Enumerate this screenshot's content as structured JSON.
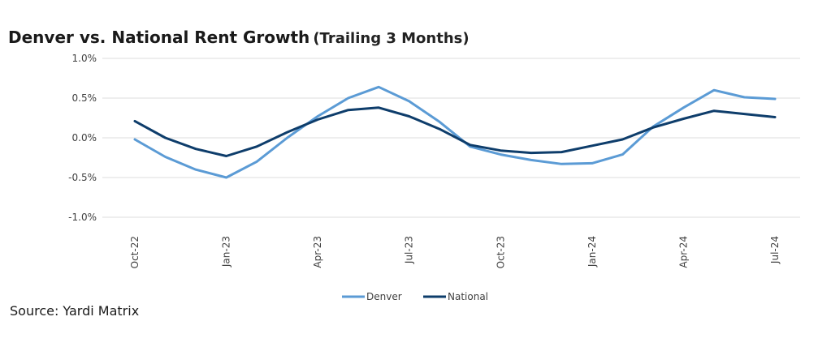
{
  "chart_data": {
    "type": "line",
    "title": "Denver vs. National Rent Growth",
    "subtitle": "(Trailing 3 Months)",
    "xlabel": "",
    "ylabel": "",
    "x": [
      "Oct-22",
      "Nov-22",
      "Dec-22",
      "Jan-23",
      "Feb-23",
      "Mar-23",
      "Apr-23",
      "May-23",
      "Jun-23",
      "Jul-23",
      "Aug-23",
      "Sep-23",
      "Oct-23",
      "Nov-23",
      "Dec-23",
      "Jan-24",
      "Feb-24",
      "Mar-24",
      "Apr-24",
      "May-24",
      "Jun-24",
      "Jul-24"
    ],
    "x_tick_labels": [
      "Oct-22",
      "Jan-23",
      "Apr-23",
      "Jul-23",
      "Oct-23",
      "Jan-24",
      "Apr-24",
      "Jul-24"
    ],
    "y_ticks": [
      1.0,
      0.5,
      0.0,
      -0.5,
      -1.0
    ],
    "y_tick_labels": [
      "1.0%",
      "0.5%",
      "0.0%",
      "-0.5%",
      "-1.0%"
    ],
    "ylim": [
      -1.0,
      1.0
    ],
    "grid": true,
    "legend_position": "bottom-center",
    "series": [
      {
        "name": "Denver",
        "color": "#5b9bd5",
        "values": [
          -0.02,
          -0.24,
          -0.4,
          -0.5,
          -0.3,
          0.0,
          0.27,
          0.5,
          0.64,
          0.46,
          0.2,
          -0.11,
          -0.21,
          -0.28,
          -0.33,
          -0.32,
          -0.21,
          0.14,
          0.38,
          0.6,
          0.51,
          0.49
        ]
      },
      {
        "name": "National",
        "color": "#0e3d6b",
        "values": [
          0.21,
          0.0,
          -0.14,
          -0.23,
          -0.11,
          0.07,
          0.23,
          0.35,
          0.38,
          0.27,
          0.11,
          -0.09,
          -0.16,
          -0.19,
          -0.18,
          -0.1,
          -0.02,
          0.13,
          0.24,
          0.34,
          0.3,
          0.26
        ]
      }
    ]
  },
  "source": {
    "text": "Source: Yardi Matrix"
  }
}
